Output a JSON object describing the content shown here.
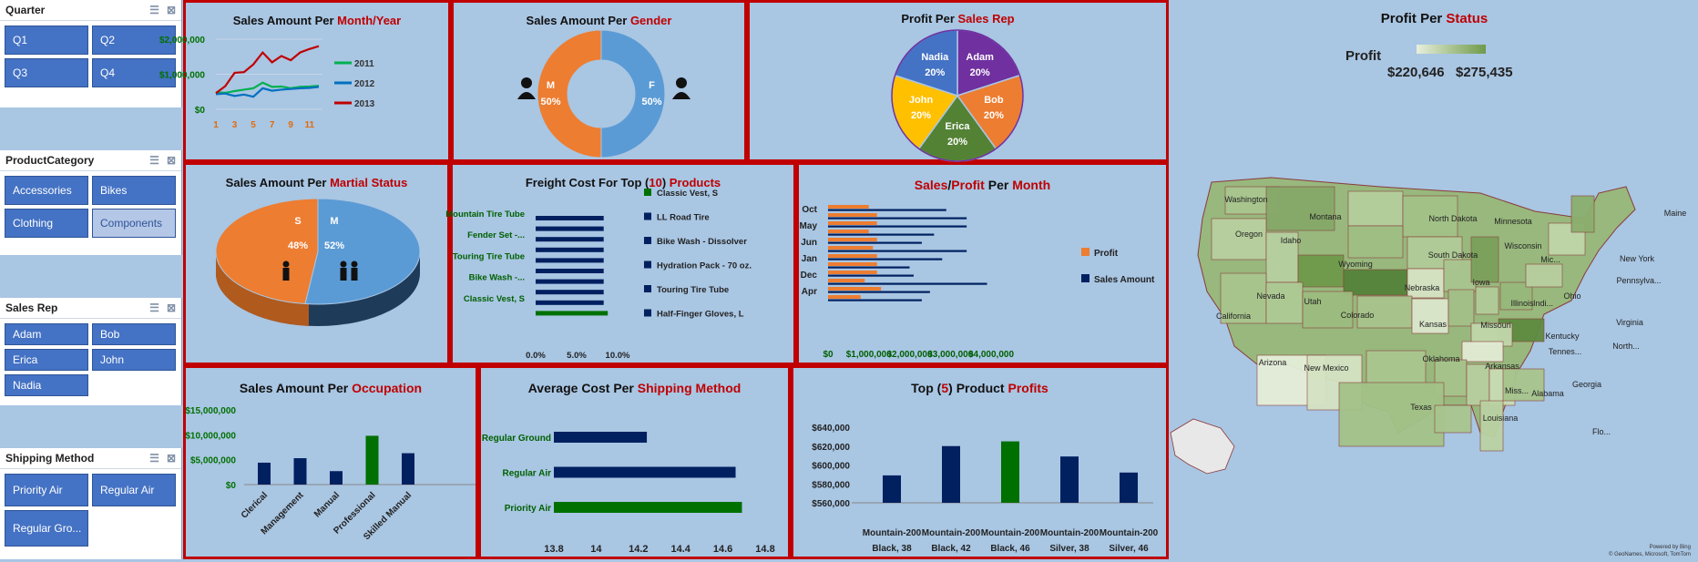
{
  "slicers": {
    "quarter": {
      "title": "Quarter",
      "items": [
        "Q1",
        "Q2",
        "Q3",
        "Q4"
      ]
    },
    "product_category": {
      "title": "ProductCategory",
      "items": [
        "Accessories",
        "Bikes",
        "Clothing",
        "Components"
      ]
    },
    "sales_rep": {
      "title": "Sales Rep",
      "items": [
        "Adam",
        "Bob",
        "Erica",
        "John",
        "Nadia"
      ]
    },
    "shipping_method": {
      "title": "Shipping Method",
      "items": [
        "Priority Air",
        "Regular Air",
        "Regular Gro..."
      ]
    }
  },
  "titles": {
    "month_year": {
      "a": "Sales Amount Per ",
      "b": "Month/Year"
    },
    "gender": {
      "a": "Sales Amount Per ",
      "b": "Gender"
    },
    "sales_rep": {
      "a": "Profit Per ",
      "b": "Sales Rep"
    },
    "status": {
      "a": "Profit Per ",
      "b": "Status"
    },
    "marital": {
      "a": "Sales Amount Per ",
      "b": "Martial Status"
    },
    "freight": {
      "a": "Freight Cost For Top (",
      "b": "10",
      "c": ") ",
      "d": "Products"
    },
    "month": {
      "a": "Sales",
      "b": "/",
      "c": "Profit",
      "d": " Per ",
      "e": "Month"
    },
    "occupation": {
      "a": "Sales Amount Per ",
      "b": "Occupation"
    },
    "shipping": {
      "a": "Average Cost Per ",
      "b": "Shipping Method"
    },
    "top5": {
      "a": "Top (",
      "b": "5",
      "c": ") Product ",
      "d": "Profits"
    }
  },
  "map": {
    "legend_label": "Profit",
    "min_label": "$220,646",
    "max_label": "$275,435",
    "footer1": "Powered by Bing",
    "footer2": "© GeoNames, Microsoft, TomTom",
    "states": [
      "Washington",
      "Montana",
      "North Dakota",
      "Minnesota",
      "Maine",
      "Oregon",
      "Idaho",
      "South Dakota",
      "Wisconsin",
      "Mic...",
      "New York",
      "Wyoming",
      "Nebraska",
      "Iowa",
      "Pennsylva...",
      "Nevada",
      "Utah",
      "Colorado",
      "Illinois",
      "Indi...",
      "Ohio",
      "California",
      "Kansas",
      "Missouri",
      "Kentucky",
      "Virginia",
      "North...",
      "Tennes...",
      "Arizona",
      "New Mexico",
      "Oklahoma",
      "Arkansas",
      "Miss...",
      "Alabama",
      "Georgia",
      "Texas",
      "Louisiana",
      "Flo..."
    ]
  },
  "chart_data": [
    {
      "type": "line",
      "title": "Sales Amount Per Month/Year",
      "x": [
        1,
        2,
        3,
        4,
        5,
        6,
        7,
        8,
        9,
        10,
        11,
        12
      ],
      "x_tick_labels": [
        "1",
        "3",
        "5",
        "7",
        "9",
        "11"
      ],
      "y_tick_labels": [
        "$0",
        "$1,000,000",
        "$2,000,000"
      ],
      "ylim": [
        0,
        2000000
      ],
      "series": [
        {
          "name": "2011",
          "color": "#00b050",
          "values": [
            480000,
            470000,
            520000,
            560000,
            600000,
            760000,
            640000,
            650000,
            600000,
            640000,
            650000,
            670000
          ]
        },
        {
          "name": "2012",
          "color": "#0070c0",
          "values": [
            430000,
            450000,
            380000,
            420000,
            360000,
            600000,
            530000,
            560000,
            580000,
            600000,
            610000,
            640000
          ]
        },
        {
          "name": "2013",
          "color": "#c00000",
          "values": [
            460000,
            660000,
            1040000,
            1060000,
            1280000,
            1620000,
            1340000,
            1520000,
            1400000,
            1620000,
            1720000,
            1800000
          ]
        }
      ],
      "legend": "right"
    },
    {
      "type": "pie",
      "title": "Sales Amount Per Gender",
      "donut": true,
      "slices": [
        {
          "label": "M",
          "value": 50,
          "text": "50%",
          "color": "#ed7d31"
        },
        {
          "label": "F",
          "value": 50,
          "text": "50%",
          "color": "#5b9bd5"
        }
      ]
    },
    {
      "type": "pie",
      "title": "Profit Per Sales Rep",
      "slices": [
        {
          "label": "Adam",
          "value": 20,
          "text": "20%",
          "color": "#7030a0"
        },
        {
          "label": "Bob",
          "value": 20,
          "text": "20%",
          "color": "#ed7d31"
        },
        {
          "label": "Erica",
          "value": 20,
          "text": "20%",
          "color": "#548235"
        },
        {
          "label": "John",
          "value": 20,
          "text": "20%",
          "color": "#ffc000"
        },
        {
          "label": "Nadia",
          "value": 20,
          "text": "20%",
          "color": "#4472c4"
        }
      ]
    },
    {
      "type": "pie",
      "title": "Sales Amount Per Martial Status",
      "slices": [
        {
          "label": "M",
          "value": 52,
          "text": "52%",
          "color": "#5b9bd5"
        },
        {
          "label": "S",
          "value": 48,
          "text": "48%",
          "color": "#ed7d31"
        }
      ]
    },
    {
      "type": "bar",
      "orientation": "horizontal",
      "title": "Freight Cost For Top (10) Products",
      "y_tick_labels": [
        "Mountain Tire Tube",
        "Fender Set -...",
        "Touring Tire Tube",
        "Bike Wash -...",
        "Classic Vest, S"
      ],
      "x_tick_labels": [
        "0.0%",
        "5.0%",
        "10.0%"
      ],
      "xlim": [
        0,
        10
      ],
      "values": [
        8.3,
        8.3,
        8.3,
        8.3,
        8.3,
        8.3,
        8.3,
        8.3,
        8.3,
        8.8
      ],
      "colors": [
        "#002060",
        "#002060",
        "#002060",
        "#002060",
        "#002060",
        "#002060",
        "#002060",
        "#002060",
        "#002060",
        "#007000"
      ],
      "legend_entries": [
        {
          "name": "Classic Vest, S",
          "color": "#007000"
        },
        {
          "name": "LL Road Tire",
          "color": "#002060"
        },
        {
          "name": "Bike Wash - Dissolver",
          "color": "#002060"
        },
        {
          "name": "Hydration Pack - 70 oz.",
          "color": "#002060"
        },
        {
          "name": "Touring Tire Tube",
          "color": "#002060"
        },
        {
          "name": "Half-Finger Gloves, L",
          "color": "#002060"
        }
      ]
    },
    {
      "type": "bar",
      "orientation": "horizontal",
      "title": "Sales/Profit Per Month",
      "y_tick_labels": [
        "Oct",
        "May",
        "Jun",
        "Jan",
        "Dec",
        "Apr"
      ],
      "x_tick_labels": [
        "$0",
        "$1,000,000",
        "$2,000,000",
        "$3,000,000",
        "$4,000,000"
      ],
      "xlim": [
        0,
        4000000
      ],
      "series": [
        {
          "name": "Profit",
          "color": "#ed7d31",
          "values": [
            1000000,
            1200000,
            1200000,
            1000000,
            1200000,
            1100000,
            1200000,
            1200000,
            1200000,
            900000,
            1300000,
            800000
          ]
        },
        {
          "name": "Sales Amount",
          "color": "#002060",
          "values": [
            2900000,
            3400000,
            3400000,
            2600000,
            2300000,
            3400000,
            2800000,
            2000000,
            2100000,
            3900000,
            2500000,
            2300000
          ]
        }
      ],
      "legend": "right"
    },
    {
      "type": "bar",
      "title": "Sales Amount Per Occupation",
      "categories": [
        "Clerical",
        "Management",
        "Manual",
        "Professional",
        "Skilled Manual"
      ],
      "values": [
        4400000,
        5300000,
        2700000,
        9800000,
        6300000
      ],
      "colors": [
        "#002060",
        "#002060",
        "#002060",
        "#007000",
        "#002060"
      ],
      "y_tick_labels": [
        "$0",
        "$5,000,000",
        "$10,000,000",
        "$15,000,000"
      ],
      "ylim": [
        0,
        15000000
      ]
    },
    {
      "type": "bar",
      "orientation": "horizontal",
      "title": "Average Cost Per Shipping Method",
      "categories": [
        "Regular Ground",
        "Regular Air",
        "Priority Air"
      ],
      "values": [
        14.24,
        14.66,
        14.69
      ],
      "colors": [
        "#002060",
        "#002060",
        "#007000"
      ],
      "x_tick_labels": [
        "13.8",
        "14",
        "14.2",
        "14.4",
        "14.6",
        "14.8"
      ],
      "xlim": [
        13.8,
        14.8
      ]
    },
    {
      "type": "bar",
      "title": "Top (5) Product Profits",
      "categories": [
        "Mountain-200 Black, 38",
        "Mountain-200 Black, 42",
        "Mountain-200 Black, 46",
        "Mountain-200 Silver, 38",
        "Mountain-200 Silver, 46"
      ],
      "category_lines": [
        [
          "Mountain-200",
          "Black, 38"
        ],
        [
          "Mountain-200",
          "Black, 42"
        ],
        [
          "Mountain-200",
          "Black, 46"
        ],
        [
          "Mountain-200",
          "Silver, 38"
        ],
        [
          "Mountain-200",
          "Silver, 46"
        ]
      ],
      "values": [
        589000,
        620000,
        625000,
        609000,
        592000
      ],
      "colors": [
        "#002060",
        "#002060",
        "#007000",
        "#002060",
        "#002060"
      ],
      "y_tick_labels": [
        "$560,000",
        "$580,000",
        "$600,000",
        "$620,000",
        "$640,000"
      ],
      "ylim": [
        560000,
        640000
      ]
    }
  ]
}
